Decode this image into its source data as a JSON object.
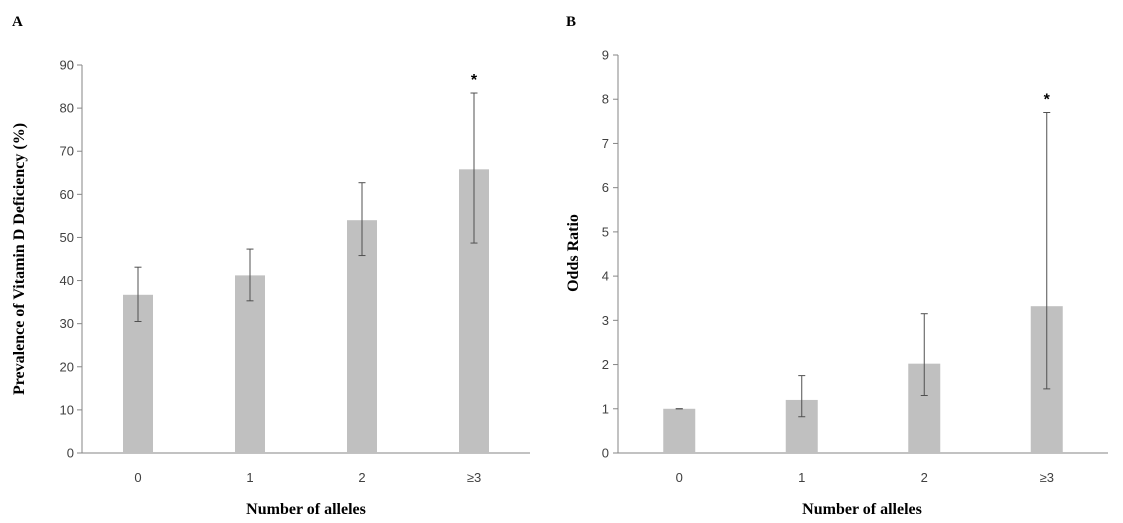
{
  "chart_data": [
    {
      "panel": "A",
      "type": "bar",
      "categories": [
        "0",
        "1",
        "2",
        "≥3"
      ],
      "values": [
        36.7,
        41.2,
        54.0,
        65.8
      ],
      "error_low": [
        30.5,
        35.3,
        45.8,
        48.7
      ],
      "error_high": [
        43.1,
        47.3,
        62.7,
        83.5
      ],
      "significance": [
        "",
        "",
        "",
        "*"
      ],
      "xlabel": "Number of alleles",
      "ylabel": "Prevalence of Vitamin D Deficiency (%)",
      "ylim": [
        0,
        90
      ],
      "yticks": [
        0,
        10,
        20,
        30,
        40,
        50,
        60,
        70,
        80,
        90
      ],
      "grid": false,
      "bar_color": "#c0c0c0"
    },
    {
      "panel": "B",
      "type": "bar",
      "categories": [
        "0",
        "1",
        "2",
        "≥3"
      ],
      "values": [
        1.0,
        1.2,
        2.02,
        3.32
      ],
      "error_low": [
        1.0,
        0.82,
        1.3,
        1.45
      ],
      "error_high": [
        1.0,
        1.75,
        3.15,
        7.7
      ],
      "significance": [
        "",
        "",
        "",
        "*"
      ],
      "xlabel": "Number of alleles",
      "ylabel": "Odds Ratio",
      "ylim": [
        0,
        9
      ],
      "yticks": [
        0,
        1,
        2,
        3,
        4,
        5,
        6,
        7,
        8,
        9
      ],
      "grid": false,
      "bar_color": "#c0c0c0"
    }
  ]
}
